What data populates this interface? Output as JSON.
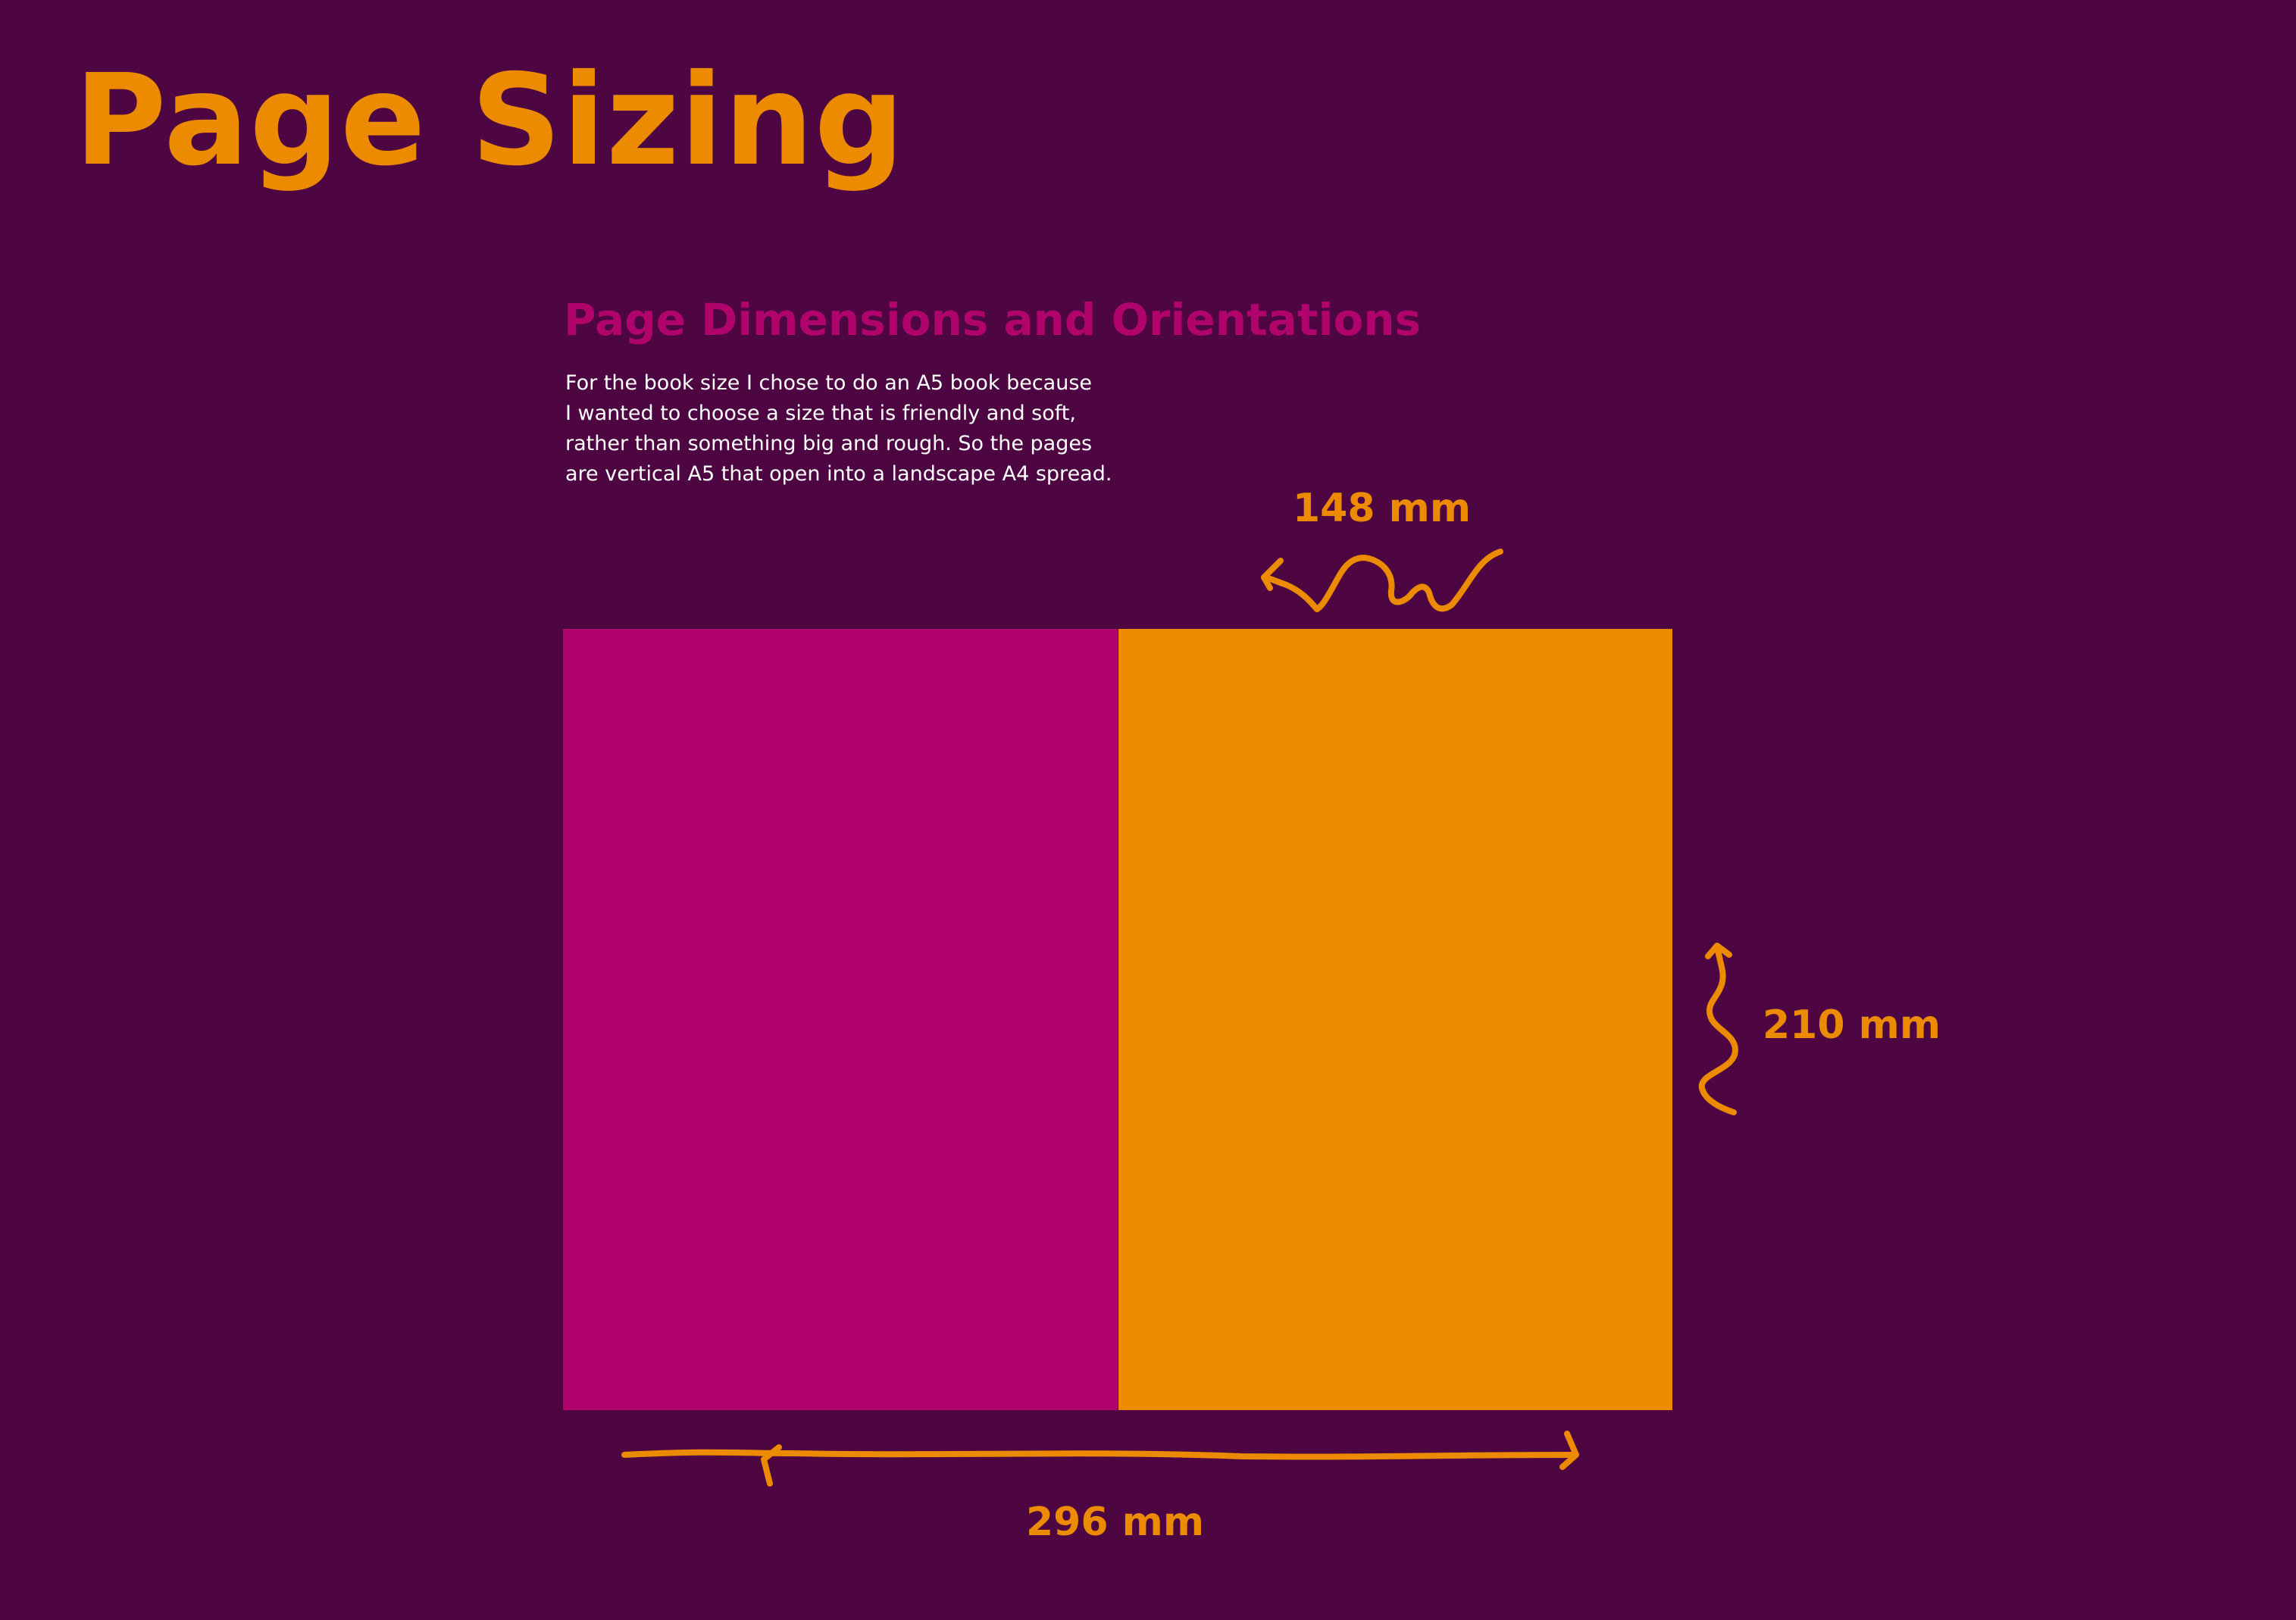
{
  "title": "Page Sizing",
  "section": {
    "heading": "Page Dimensions and Orientations",
    "body": "For the book size I chose to do an A5 book because\nI wanted to choose a size that is friendly and soft,\nrather than something big and rough. So the pages\nare vertical A5 that open into a landscape A4 spread."
  },
  "dimensions": {
    "page_width": "148 mm",
    "page_height": "210 mm",
    "spread_width": "296 mm"
  },
  "colors": {
    "background": "#4d0641",
    "accent_orange": "#ec8a00",
    "accent_magenta": "#b0036c",
    "text": "#ffffff"
  },
  "icons": [
    "squiggle-arrow-icon",
    "wavy-arrow-icon",
    "long-arrow-icon"
  ]
}
